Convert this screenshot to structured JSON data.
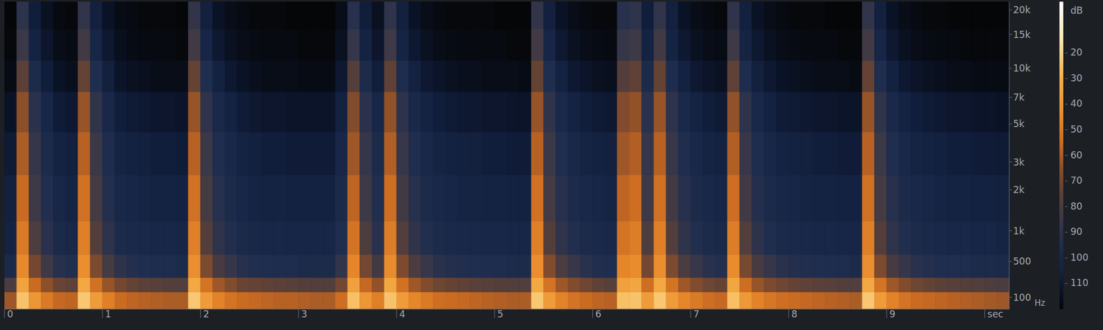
{
  "chart_data": {
    "type": "heatmap",
    "y_label": "Hz",
    "xlim": [
      0,
      10.25
    ],
    "xticks": [
      0,
      1,
      2,
      3,
      4,
      5,
      6,
      7,
      8,
      9,
      {
        "value": 10,
        "label": "sec"
      }
    ],
    "ylim": [
      0,
      22050
    ],
    "yticks": [
      100,
      500,
      {
        "value": 1000,
        "label": "1k"
      },
      {
        "value": 2000,
        "label": "2k"
      },
      {
        "value": 3000,
        "label": "3k"
      },
      {
        "value": 5000,
        "label": "5k"
      },
      {
        "value": 7000,
        "label": "7k"
      },
      {
        "value": 10000,
        "label": "10k"
      },
      {
        "value": 15000,
        "label": "15k"
      },
      {
        "value": 20000,
        "label": "20k"
      }
    ],
    "time_bins": [
      0,
      0.125,
      0.25,
      0.375,
      0.5,
      0.625,
      0.75,
      0.875,
      1,
      1.125,
      1.25,
      1.375,
      1.5,
      1.625,
      1.75,
      1.875,
      2,
      2.125,
      2.25,
      2.375,
      2.5,
      2.625,
      2.75,
      2.875,
      3,
      3.125,
      3.25,
      3.375,
      3.5,
      3.625,
      3.75,
      3.875,
      4,
      4.125,
      4.25,
      4.375,
      4.5,
      4.625,
      4.75,
      4.875,
      5,
      5.125,
      5.25,
      5.375,
      5.5,
      5.625,
      5.75,
      5.875,
      6,
      6.125,
      6.25,
      6.375,
      6.5,
      6.625,
      6.75,
      6.875,
      7,
      7.125,
      7.25,
      7.375,
      7.5,
      7.625,
      7.75,
      7.875,
      8,
      8.125,
      8.25,
      8.375,
      8.5,
      8.625,
      8.75,
      8.875,
      9,
      9.125,
      9.25,
      9.375,
      9.5,
      9.625,
      9.75,
      9.875,
      10,
      10.125,
      10.25
    ],
    "frequency_bins": [
      0,
      150,
      300,
      600,
      1200,
      2500,
      4500,
      7500,
      11000,
      16000,
      22050
    ],
    "cells": [
      [
        62,
        25,
        40,
        50,
        56,
        57,
        24,
        38,
        48,
        55,
        57,
        58,
        59,
        60,
        60,
        24,
        38,
        47,
        52,
        55,
        56,
        57,
        58,
        58,
        59,
        60,
        60,
        54,
        26,
        40,
        48,
        25,
        38,
        46,
        50,
        54,
        55,
        56,
        57,
        58,
        59,
        60,
        60,
        24,
        38,
        47,
        52,
        55,
        57,
        58,
        26,
        25,
        38,
        24,
        38,
        46,
        50,
        54,
        56,
        26,
        39,
        47,
        51,
        54,
        55,
        56,
        57,
        58,
        59,
        60,
        24,
        38,
        47,
        52,
        55,
        56,
        57,
        58,
        59,
        60,
        61,
        62
      ],
      [
        80,
        35,
        55,
        65,
        72,
        74,
        33,
        53,
        63,
        70,
        73,
        75,
        76,
        77,
        78,
        33,
        52,
        62,
        67,
        72,
        73,
        74,
        75,
        76,
        77,
        78,
        78,
        70,
        36,
        56,
        64,
        34,
        53,
        62,
        67,
        71,
        73,
        74,
        75,
        76,
        77,
        78,
        78,
        33,
        52,
        62,
        67,
        71,
        74,
        76,
        36,
        34,
        54,
        33,
        52,
        62,
        67,
        71,
        73,
        34,
        54,
        63,
        68,
        71,
        73,
        74,
        75,
        76,
        77,
        78,
        33,
        52,
        62,
        67,
        71,
        73,
        75,
        76,
        77,
        78,
        79,
        80
      ],
      [
        98,
        45,
        70,
        84,
        92,
        94,
        43,
        68,
        82,
        90,
        93,
        95,
        96,
        96,
        97,
        43,
        68,
        81,
        87,
        92,
        94,
        95,
        96,
        96,
        97,
        97,
        97,
        88,
        46,
        70,
        83,
        44,
        68,
        80,
        86,
        91,
        93,
        94,
        95,
        96,
        96,
        97,
        97,
        43,
        67,
        80,
        86,
        91,
        94,
        95,
        46,
        44,
        70,
        43,
        68,
        80,
        86,
        91,
        93,
        44,
        69,
        81,
        87,
        91,
        93,
        94,
        95,
        96,
        96,
        97,
        43,
        68,
        81,
        87,
        91,
        93,
        95,
        95,
        96,
        97,
        97,
        98
      ],
      [
        104,
        50,
        79,
        91,
        98,
        100,
        48,
        77,
        90,
        97,
        99,
        100,
        101,
        101,
        102,
        48,
        77,
        89,
        94,
        98,
        100,
        101,
        101,
        102,
        102,
        102,
        102,
        95,
        52,
        79,
        91,
        49,
        78,
        89,
        94,
        97,
        99,
        100,
        100,
        101,
        101,
        102,
        102,
        48,
        77,
        89,
        94,
        97,
        99,
        100,
        52,
        49,
        79,
        48,
        78,
        89,
        94,
        97,
        99,
        49,
        78,
        90,
        95,
        98,
        99,
        100,
        101,
        101,
        102,
        102,
        48,
        77,
        89,
        94,
        97,
        99,
        100,
        101,
        101,
        102,
        102,
        103
      ],
      [
        106,
        55,
        84,
        94,
        101,
        103,
        53,
        82,
        93,
        100,
        102,
        103,
        104,
        104,
        105,
        53,
        82,
        92,
        97,
        101,
        103,
        104,
        104,
        105,
        105,
        105,
        105,
        98,
        57,
        84,
        94,
        54,
        83,
        92,
        97,
        100,
        102,
        103,
        103,
        104,
        104,
        105,
        105,
        53,
        82,
        92,
        97,
        100,
        102,
        103,
        57,
        54,
        84,
        53,
        83,
        92,
        97,
        100,
        102,
        54,
        83,
        93,
        98,
        101,
        102,
        103,
        104,
        104,
        105,
        105,
        53,
        82,
        92,
        97,
        100,
        102,
        103,
        104,
        104,
        105,
        105,
        106
      ],
      [
        109,
        60,
        87,
        97,
        104,
        106,
        58,
        85,
        96,
        103,
        105,
        106,
        107,
        107,
        108,
        58,
        85,
        95,
        100,
        104,
        106,
        107,
        107,
        108,
        108,
        108,
        108,
        101,
        62,
        87,
        97,
        59,
        86,
        95,
        100,
        103,
        105,
        106,
        106,
        107,
        107,
        108,
        108,
        58,
        85,
        95,
        100,
        103,
        105,
        106,
        62,
        59,
        87,
        58,
        86,
        95,
        100,
        103,
        105,
        59,
        86,
        96,
        101,
        104,
        105,
        106,
        107,
        107,
        108,
        108,
        58,
        85,
        95,
        100,
        103,
        105,
        106,
        107,
        107,
        108,
        108,
        109
      ],
      [
        113,
        65,
        91,
        101,
        108,
        110,
        63,
        89,
        100,
        107,
        109,
        110,
        111,
        111,
        112,
        63,
        89,
        99,
        104,
        108,
        110,
        111,
        111,
        112,
        112,
        112,
        112,
        105,
        67,
        91,
        101,
        64,
        90,
        99,
        104,
        107,
        109,
        110,
        110,
        111,
        111,
        112,
        112,
        63,
        89,
        99,
        104,
        107,
        109,
        110,
        67,
        64,
        91,
        63,
        90,
        99,
        104,
        107,
        109,
        64,
        90,
        100,
        105,
        108,
        109,
        110,
        111,
        111,
        112,
        112,
        63,
        89,
        99,
        104,
        107,
        109,
        110,
        111,
        111,
        112,
        112,
        113
      ],
      [
        117,
        75,
        97,
        107,
        113,
        115,
        73,
        95,
        106,
        112,
        114,
        115,
        116,
        116,
        116,
        73,
        95,
        105,
        110,
        113,
        115,
        116,
        116,
        116,
        117,
        117,
        117,
        110,
        77,
        97,
        107,
        74,
        96,
        105,
        110,
        112,
        114,
        115,
        115,
        116,
        116,
        116,
        117,
        73,
        95,
        105,
        110,
        112,
        114,
        115,
        77,
        74,
        97,
        73,
        96,
        105,
        110,
        112,
        114,
        74,
        96,
        106,
        110,
        113,
        114,
        115,
        116,
        116,
        116,
        117,
        73,
        95,
        105,
        110,
        112,
        114,
        115,
        116,
        116,
        117,
        117,
        117
      ],
      [
        119,
        85,
        104,
        111,
        116,
        117,
        83,
        102,
        110,
        115,
        117,
        118,
        118,
        118,
        119,
        83,
        102,
        110,
        114,
        116,
        117,
        118,
        118,
        118,
        119,
        119,
        119,
        114,
        87,
        104,
        111,
        84,
        103,
        110,
        114,
        116,
        117,
        118,
        118,
        118,
        118,
        119,
        119,
        83,
        102,
        110,
        114,
        116,
        117,
        118,
        87,
        84,
        104,
        83,
        103,
        110,
        114,
        116,
        117,
        84,
        103,
        110,
        114,
        116,
        117,
        118,
        118,
        118,
        119,
        119,
        83,
        102,
        110,
        114,
        116,
        117,
        118,
        118,
        119,
        119,
        119,
        119
      ],
      [
        120,
        90,
        107,
        114,
        118,
        119,
        88,
        106,
        113,
        117,
        118,
        119,
        119,
        119,
        120,
        88,
        106,
        113,
        116,
        118,
        119,
        119,
        119,
        120,
        120,
        120,
        120,
        116,
        92,
        107,
        114,
        89,
        106,
        113,
        116,
        118,
        119,
        119,
        119,
        119,
        120,
        120,
        120,
        88,
        106,
        113,
        116,
        118,
        119,
        119,
        92,
        89,
        107,
        88,
        106,
        113,
        116,
        118,
        119,
        89,
        106,
        113,
        116,
        118,
        119,
        119,
        119,
        120,
        120,
        120,
        88,
        106,
        113,
        116,
        118,
        119,
        119,
        120,
        120,
        120,
        120,
        120
      ]
    ],
    "colorbar": {
      "label": "dB",
      "range": [
        0,
        120
      ],
      "ticks": [
        20,
        30,
        40,
        50,
        60,
        70,
        80,
        90,
        100,
        110
      ]
    }
  }
}
